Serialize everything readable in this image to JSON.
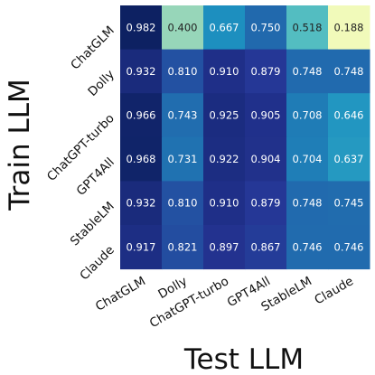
{
  "chart_data": {
    "type": "heatmap",
    "xlabel": "Test LLM",
    "ylabel": "Train LLM",
    "x_categories": [
      "ChatGLM",
      "Dolly",
      "ChatGPT-turbo",
      "GPT4All",
      "StableLM",
      "Claude"
    ],
    "y_categories": [
      "ChatGLM",
      "Dolly",
      "ChatGPT-turbo",
      "GPT4All",
      "StableLM",
      "Claude"
    ],
    "values": [
      [
        "0.982",
        "0.400",
        "0.667",
        "0.750",
        "0.518",
        "0.188"
      ],
      [
        "0.932",
        "0.810",
        "0.910",
        "0.879",
        "0.748",
        "0.748"
      ],
      [
        "0.966",
        "0.743",
        "0.925",
        "0.905",
        "0.708",
        "0.646"
      ],
      [
        "0.968",
        "0.731",
        "0.922",
        "0.904",
        "0.704",
        "0.637"
      ],
      [
        "0.932",
        "0.810",
        "0.910",
        "0.879",
        "0.748",
        "0.745"
      ],
      [
        "0.917",
        "0.821",
        "0.897",
        "0.867",
        "0.746",
        "0.746"
      ]
    ],
    "colormap": "YlGnBu",
    "grid": false
  }
}
